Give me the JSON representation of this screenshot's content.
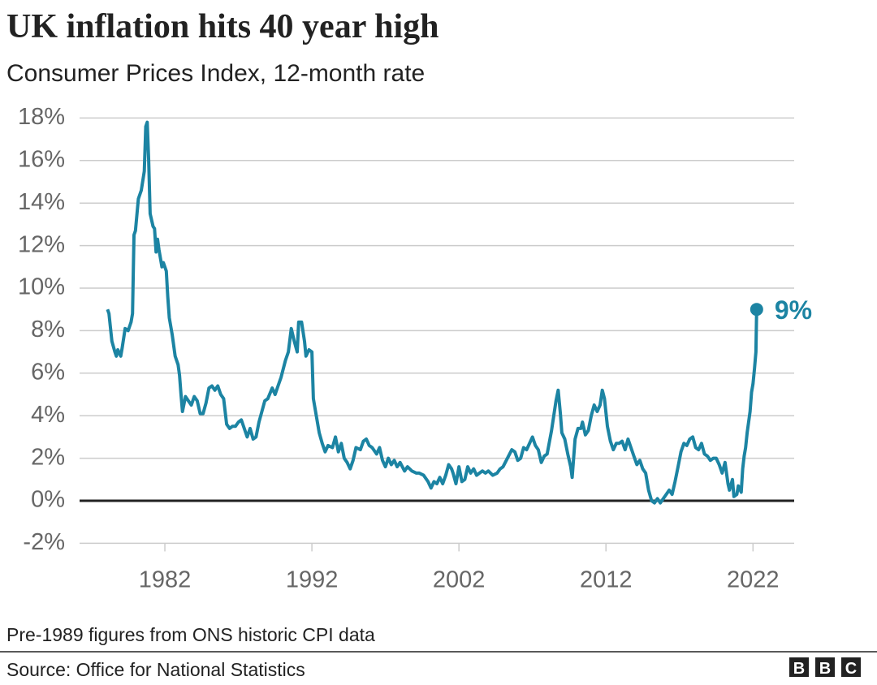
{
  "chart_data": {
    "type": "line",
    "title": "UK inflation hits 40 year high",
    "subtitle": "Consumer Prices Index, 12-month rate",
    "note": "Pre-1989 figures from ONS historic CPI data",
    "source": "Source: Office for National Statistics",
    "logo": [
      "B",
      "B",
      "C"
    ],
    "annotation": "9%",
    "xlim": [
      1976.2,
      2024.8
    ],
    "xticks": [
      1982,
      1992,
      2002,
      2012,
      2022
    ],
    "ylim": [
      -2,
      18
    ],
    "yticks": [
      {
        "value": -2,
        "label": "-2%"
      },
      {
        "value": 0,
        "label": "0%"
      },
      {
        "value": 2,
        "label": "2%"
      },
      {
        "value": 4,
        "label": "4%"
      },
      {
        "value": 6,
        "label": "6%"
      },
      {
        "value": 8,
        "label": "8%"
      },
      {
        "value": 10,
        "label": "10%"
      },
      {
        "value": 12,
        "label": "12%"
      },
      {
        "value": 14,
        "label": "14%"
      },
      {
        "value": 16,
        "label": "16%"
      },
      {
        "value": 18,
        "label": "18%"
      }
    ],
    "grid": true,
    "color": "#1c84a3",
    "x": [
      1978.1,
      1978.2,
      1978.4,
      1978.6,
      1978.7,
      1978.8,
      1979.0,
      1979.1,
      1979.3,
      1979.5,
      1979.7,
      1979.8,
      1979.9,
      1980.0,
      1980.2,
      1980.4,
      1980.6,
      1980.7,
      1980.8,
      1980.9,
      1981.0,
      1981.2,
      1981.3,
      1981.4,
      1981.5,
      1981.6,
      1981.8,
      1981.9,
      1982.1,
      1982.2,
      1982.3,
      1982.5,
      1982.7,
      1982.9,
      1983.0,
      1983.1,
      1983.2,
      1983.4,
      1983.6,
      1983.8,
      1984.0,
      1984.2,
      1984.4,
      1984.6,
      1984.8,
      1985.0,
      1985.2,
      1985.4,
      1985.6,
      1985.8,
      1986.0,
      1986.2,
      1986.4,
      1986.6,
      1986.8,
      1987.0,
      1987.2,
      1987.4,
      1987.6,
      1987.8,
      1988.0,
      1988.2,
      1988.4,
      1988.6,
      1988.8,
      1989.0,
      1989.3,
      1989.5,
      1989.7,
      1989.9,
      1990.2,
      1990.4,
      1990.6,
      1990.8,
      1991.0,
      1991.1,
      1991.3,
      1991.5,
      1991.6,
      1991.8,
      1992.0,
      1992.1,
      1992.3,
      1992.5,
      1992.7,
      1992.9,
      1993.1,
      1993.4,
      1993.6,
      1993.8,
      1994.0,
      1994.2,
      1994.4,
      1994.6,
      1994.8,
      1995.0,
      1995.3,
      1995.5,
      1995.7,
      1995.9,
      1996.1,
      1996.4,
      1996.6,
      1996.8,
      1997.0,
      1997.2,
      1997.4,
      1997.6,
      1997.8,
      1998.0,
      1998.3,
      1998.5,
      1998.8,
      1999.1,
      1999.3,
      1999.6,
      1999.9,
      2000.1,
      2000.3,
      2000.5,
      2000.7,
      2000.9,
      2001.1,
      2001.3,
      2001.5,
      2001.6,
      2001.8,
      2002.0,
      2002.2,
      2002.4,
      2002.6,
      2002.8,
      2003.0,
      2003.2,
      2003.4,
      2003.6,
      2003.8,
      2004.0,
      2004.3,
      2004.6,
      2004.8,
      2005.0,
      2005.3,
      2005.6,
      2005.8,
      2006.0,
      2006.2,
      2006.4,
      2006.6,
      2006.8,
      2007.0,
      2007.2,
      2007.4,
      2007.6,
      2007.8,
      2008.0,
      2008.3,
      2008.6,
      2008.75,
      2008.9,
      2009.0,
      2009.2,
      2009.4,
      2009.6,
      2009.7,
      2009.9,
      2010.1,
      2010.3,
      2010.4,
      2010.6,
      2010.8,
      2011.0,
      2011.2,
      2011.4,
      2011.6,
      2011.75,
      2011.9,
      2012.1,
      2012.3,
      2012.5,
      2012.7,
      2012.9,
      2013.1,
      2013.3,
      2013.5,
      2013.7,
      2013.9,
      2014.1,
      2014.3,
      2014.5,
      2014.7,
      2014.9,
      2015.1,
      2015.3,
      2015.5,
      2015.7,
      2015.9,
      2016.1,
      2016.3,
      2016.5,
      2016.7,
      2016.9,
      2017.1,
      2017.3,
      2017.5,
      2017.7,
      2017.9,
      2018.1,
      2018.3,
      2018.5,
      2018.7,
      2018.9,
      2019.1,
      2019.3,
      2019.5,
      2019.7,
      2019.9,
      2020.1,
      2020.3,
      2020.4,
      2020.6,
      2020.7,
      2020.9,
      2021.0,
      2021.2,
      2021.3,
      2021.4,
      2021.5,
      2021.6,
      2021.8,
      2021.9,
      2022.0,
      2022.1,
      2022.2,
      2022.25
    ],
    "series": [
      {
        "name": "CPI 12-month rate",
        "values": [
          9.0,
          8.8,
          7.5,
          7.0,
          6.8,
          7.1,
          6.8,
          7.2,
          8.1,
          8.0,
          8.4,
          8.8,
          12.5,
          12.7,
          14.2,
          14.6,
          15.5,
          17.6,
          17.8,
          16.0,
          13.5,
          12.9,
          12.8,
          11.7,
          12.3,
          11.8,
          11.0,
          11.2,
          10.8,
          9.6,
          8.6,
          7.8,
          6.8,
          6.4,
          5.9,
          5.0,
          4.2,
          4.9,
          4.7,
          4.5,
          4.9,
          4.7,
          4.1,
          4.1,
          4.6,
          5.3,
          5.4,
          5.2,
          5.4,
          5.0,
          4.8,
          3.6,
          3.4,
          3.5,
          3.5,
          3.7,
          3.8,
          3.4,
          3.0,
          3.4,
          2.9,
          3.0,
          3.7,
          4.2,
          4.7,
          4.8,
          5.3,
          5.0,
          5.4,
          5.8,
          6.6,
          7.0,
          8.1,
          7.5,
          7.0,
          8.4,
          8.4,
          7.5,
          6.8,
          7.1,
          7.0,
          4.8,
          4.0,
          3.2,
          2.7,
          2.3,
          2.6,
          2.5,
          3.0,
          2.3,
          2.7,
          2.0,
          1.8,
          1.5,
          1.9,
          2.5,
          2.4,
          2.8,
          2.9,
          2.6,
          2.5,
          2.2,
          2.5,
          1.9,
          1.6,
          2.0,
          1.7,
          1.9,
          1.6,
          1.8,
          1.4,
          1.6,
          1.4,
          1.3,
          1.3,
          1.2,
          0.9,
          0.6,
          0.9,
          0.8,
          1.1,
          0.8,
          1.2,
          1.7,
          1.5,
          1.3,
          0.8,
          1.6,
          0.9,
          1.0,
          1.6,
          1.3,
          1.5,
          1.2,
          1.3,
          1.4,
          1.3,
          1.4,
          1.2,
          1.3,
          1.5,
          1.6,
          2.0,
          2.4,
          2.3,
          1.9,
          2.0,
          2.5,
          2.4,
          2.7,
          3.0,
          2.6,
          2.4,
          1.8,
          2.1,
          2.2,
          3.3,
          4.7,
          5.2,
          4.1,
          3.2,
          2.9,
          2.2,
          1.6,
          1.1,
          2.9,
          3.4,
          3.4,
          3.7,
          3.1,
          3.3,
          4.0,
          4.5,
          4.2,
          4.5,
          5.2,
          4.8,
          3.5,
          2.8,
          2.4,
          2.7,
          2.7,
          2.8,
          2.4,
          2.9,
          2.5,
          2.1,
          1.7,
          1.9,
          1.5,
          1.3,
          0.5,
          0.0,
          -0.1,
          0.1,
          -0.1,
          0.1,
          0.3,
          0.5,
          0.3,
          0.9,
          1.6,
          2.3,
          2.7,
          2.6,
          2.9,
          3.0,
          2.5,
          2.4,
          2.7,
          2.2,
          2.1,
          1.9,
          2.0,
          2.0,
          1.7,
          1.3,
          1.8,
          0.8,
          0.5,
          1.0,
          0.2,
          0.3,
          0.7,
          0.4,
          1.5,
          2.1,
          2.5,
          3.2,
          4.2,
          5.1,
          5.5,
          6.2,
          7.0,
          9.0
        ]
      }
    ]
  }
}
